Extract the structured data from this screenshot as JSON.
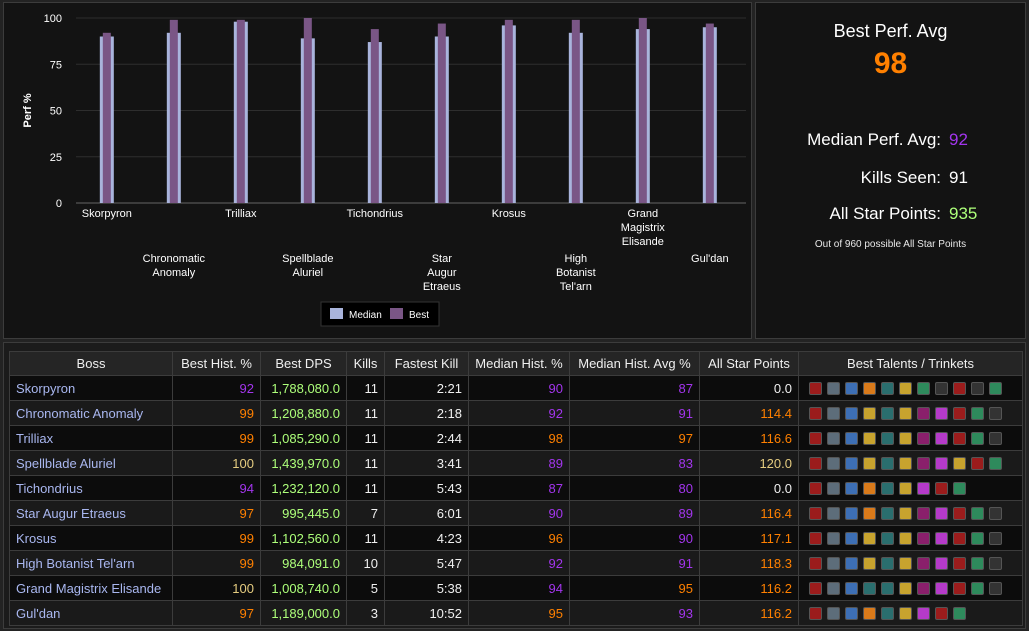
{
  "chart_data": {
    "type": "bar",
    "categories": [
      "Skorpyron",
      "Chronomatic\nAnomaly",
      "Trilliax",
      "Spellblade\nAluriel",
      "Tichondrius",
      "Star\nAugur\nEtraeus",
      "Krosus",
      "High\nBotanist\nTel'arn",
      "Grand\nMagistrix\nElisande",
      "Gul'dan"
    ],
    "series": [
      {
        "name": "Median",
        "values": [
          90,
          92,
          98,
          89,
          87,
          90,
          96,
          92,
          94,
          95
        ]
      },
      {
        "name": "Best",
        "values": [
          92,
          99,
          99,
          100,
          94,
          97,
          99,
          99,
          100,
          97
        ]
      }
    ],
    "ylabel": "Perf %",
    "ylim": [
      0,
      100
    ],
    "yticks": [
      0,
      25,
      50,
      75,
      100
    ],
    "colors": {
      "Median": "#a9b4dc",
      "Best": "#7a5686"
    },
    "legend": "bottom-center",
    "grid": true
  },
  "summary": {
    "title": "Best Perf. Avg",
    "value": "98",
    "median_label": "Median Perf. Avg:",
    "median_value": "92",
    "kills_label": "Kills Seen:",
    "kills_value": "91",
    "star_label": "All Star Points:",
    "star_value": "935",
    "note": "Out of 960 possible All Star Points"
  },
  "table": {
    "headers": [
      "Boss",
      "Best Hist. %",
      "Best DPS",
      "Kills",
      "Fastest Kill",
      "Median Hist. %",
      "Median Hist. Avg %",
      "All Star Points",
      "Best Talents / Trinkets"
    ],
    "rows": [
      {
        "boss": "Skorpyron",
        "best": "92",
        "dps": "1,788,080.0",
        "kills": "11",
        "fastest": "2:21",
        "median": "90",
        "medavg": "87",
        "stars": "0.0",
        "icons": [
          "bloodlust-icon",
          "gear-icon",
          "wind-icon",
          "fire-icon",
          "rune-icon",
          "axe-icon",
          "leaf-icon",
          "feather-icon",
          "fury-icon",
          "sword-icon",
          "potion-icon"
        ]
      },
      {
        "boss": "Chronomatic Anomaly",
        "best": "99",
        "dps": "1,208,880.0",
        "kills": "11",
        "fastest": "2:18",
        "median": "92",
        "medavg": "91",
        "stars": "114.4",
        "icons": [
          "bloodlust-icon",
          "gear-icon",
          "wind-icon",
          "claw-icon",
          "rune-icon",
          "dagger-icon",
          "arcane-icon",
          "pink-icon",
          "fury-icon",
          "potion-icon",
          "skull-icon"
        ]
      },
      {
        "boss": "Trilliax",
        "best": "99",
        "dps": "1,085,290.0",
        "kills": "11",
        "fastest": "2:44",
        "median": "98",
        "medavg": "97",
        "stars": "116.6",
        "icons": [
          "bloodlust-icon",
          "gear-icon",
          "wind-icon",
          "claw-icon",
          "rune-icon",
          "dagger-icon",
          "arcane-icon",
          "pink-icon",
          "fury-icon",
          "potion-icon",
          "skull-icon"
        ]
      },
      {
        "boss": "Spellblade Aluriel",
        "best": "100",
        "dps": "1,439,970.0",
        "kills": "11",
        "fastest": "3:41",
        "median": "89",
        "medavg": "83",
        "stars": "120.0",
        "icons": [
          "bloodlust-icon",
          "gear-icon",
          "wind-icon",
          "claw-icon",
          "rune-icon",
          "axe-icon",
          "arcane-icon",
          "pink-icon",
          "gold-icon",
          "fury-icon",
          "potion-icon"
        ]
      },
      {
        "boss": "Tichondrius",
        "best": "94",
        "dps": "1,232,120.0",
        "kills": "11",
        "fastest": "5:43",
        "median": "87",
        "medavg": "80",
        "stars": "0.0",
        "icons": [
          "bloodlust-icon",
          "gear-icon",
          "wind-icon",
          "fire-icon",
          "rune-icon",
          "axe-icon",
          "pink-icon",
          "fury-icon",
          "potion-icon"
        ]
      },
      {
        "boss": "Star Augur Etraeus",
        "best": "97",
        "dps": "995,445.0",
        "kills": "7",
        "fastest": "6:01",
        "median": "90",
        "medavg": "89",
        "stars": "116.4",
        "icons": [
          "bloodlust-icon",
          "gear-icon",
          "wind-icon",
          "fire-icon",
          "rune-icon",
          "dagger-icon",
          "arcane-icon",
          "pink-icon",
          "fury-icon",
          "potion-icon",
          "skull-icon"
        ]
      },
      {
        "boss": "Krosus",
        "best": "99",
        "dps": "1,102,560.0",
        "kills": "11",
        "fastest": "4:23",
        "median": "96",
        "medavg": "90",
        "stars": "117.1",
        "icons": [
          "bloodlust-icon",
          "gear-icon",
          "wind-icon",
          "claw-icon",
          "rune-icon",
          "dagger-icon",
          "arcane-icon",
          "pink-icon",
          "fury-icon",
          "potion-icon",
          "skull-icon"
        ]
      },
      {
        "boss": "High Botanist Tel'arn",
        "best": "99",
        "dps": "984,091.0",
        "kills": "10",
        "fastest": "5:47",
        "median": "92",
        "medavg": "91",
        "stars": "118.3",
        "icons": [
          "bloodlust-icon",
          "gear-icon",
          "wind-icon",
          "claw-icon",
          "rune-icon",
          "dagger-icon",
          "arcane-icon",
          "pink-icon",
          "fury-icon",
          "potion-icon",
          "skull-icon"
        ]
      },
      {
        "boss": "Grand Magistrix Elisande",
        "best": "100",
        "dps": "1,008,740.0",
        "kills": "5",
        "fastest": "5:38",
        "median": "94",
        "medavg": "95",
        "stars": "116.2",
        "icons": [
          "bloodlust-icon",
          "gear-icon",
          "frost-icon",
          "rune-icon",
          "rune-icon",
          "dagger-icon",
          "arcane-icon",
          "pink-icon",
          "fury-icon",
          "potion-icon",
          "skull-icon"
        ]
      },
      {
        "boss": "Gul'dan",
        "best": "97",
        "dps": "1,189,000.0",
        "kills": "3",
        "fastest": "10:52",
        "median": "95",
        "medavg": "93",
        "stars": "116.2",
        "icons": [
          "bloodlust-icon",
          "gear-icon",
          "frost-icon",
          "fire-icon",
          "rune-icon",
          "axe-icon",
          "pink-icon",
          "fury-icon",
          "potion-icon"
        ]
      }
    ]
  },
  "colors": {
    "legendary": "#ff8000",
    "epic": "#a335ee",
    "gold": "#e5cc80",
    "bestperf_orange": "#ff8000",
    "stars_green": "#adff7a",
    "stars_orange": "#ff8000",
    "median_purple": "#a335ee"
  }
}
